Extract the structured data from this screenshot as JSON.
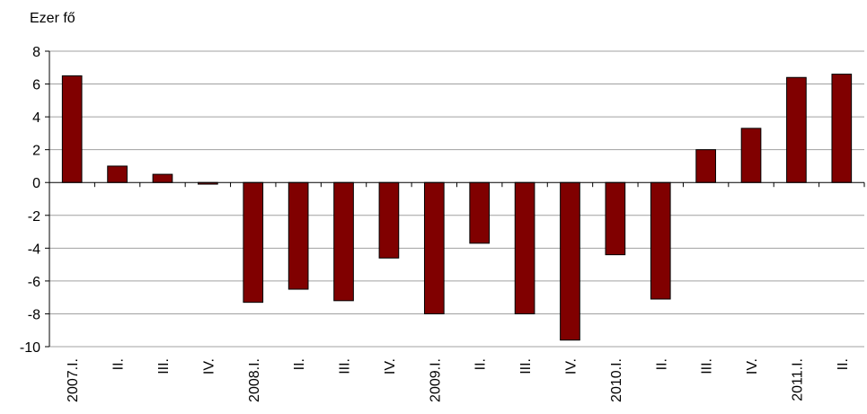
{
  "chart_data": {
    "type": "bar",
    "unit_label": "Ezer fő",
    "categories": [
      "2007.I.",
      "II.",
      "III.",
      "IV.",
      "2008.I.",
      "II.",
      "III.",
      "IV.",
      "2009.I.",
      "II.",
      "III.",
      "IV.",
      "2010.I.",
      "II.",
      "III.",
      "IV.",
      "2011.I.",
      "II."
    ],
    "values": [
      6.5,
      1.0,
      0.5,
      -0.1,
      -7.3,
      -6.5,
      -7.2,
      -4.6,
      -8.0,
      -3.7,
      -8.0,
      -9.6,
      -4.4,
      -7.1,
      2.0,
      3.3,
      6.4,
      6.6
    ],
    "ylim": [
      -10,
      8
    ],
    "yticks": [
      8,
      6,
      4,
      2,
      0,
      -2,
      -4,
      -6,
      -8,
      -10
    ],
    "ytick_labels": [
      "8",
      "6",
      "4",
      "2",
      "0",
      "-2",
      "-4",
      "-6",
      "-8",
      "-10"
    ],
    "grid": true,
    "bar_color": "#800000",
    "bar_stroke": "#000000",
    "grid_color": "#a0a0a0"
  }
}
